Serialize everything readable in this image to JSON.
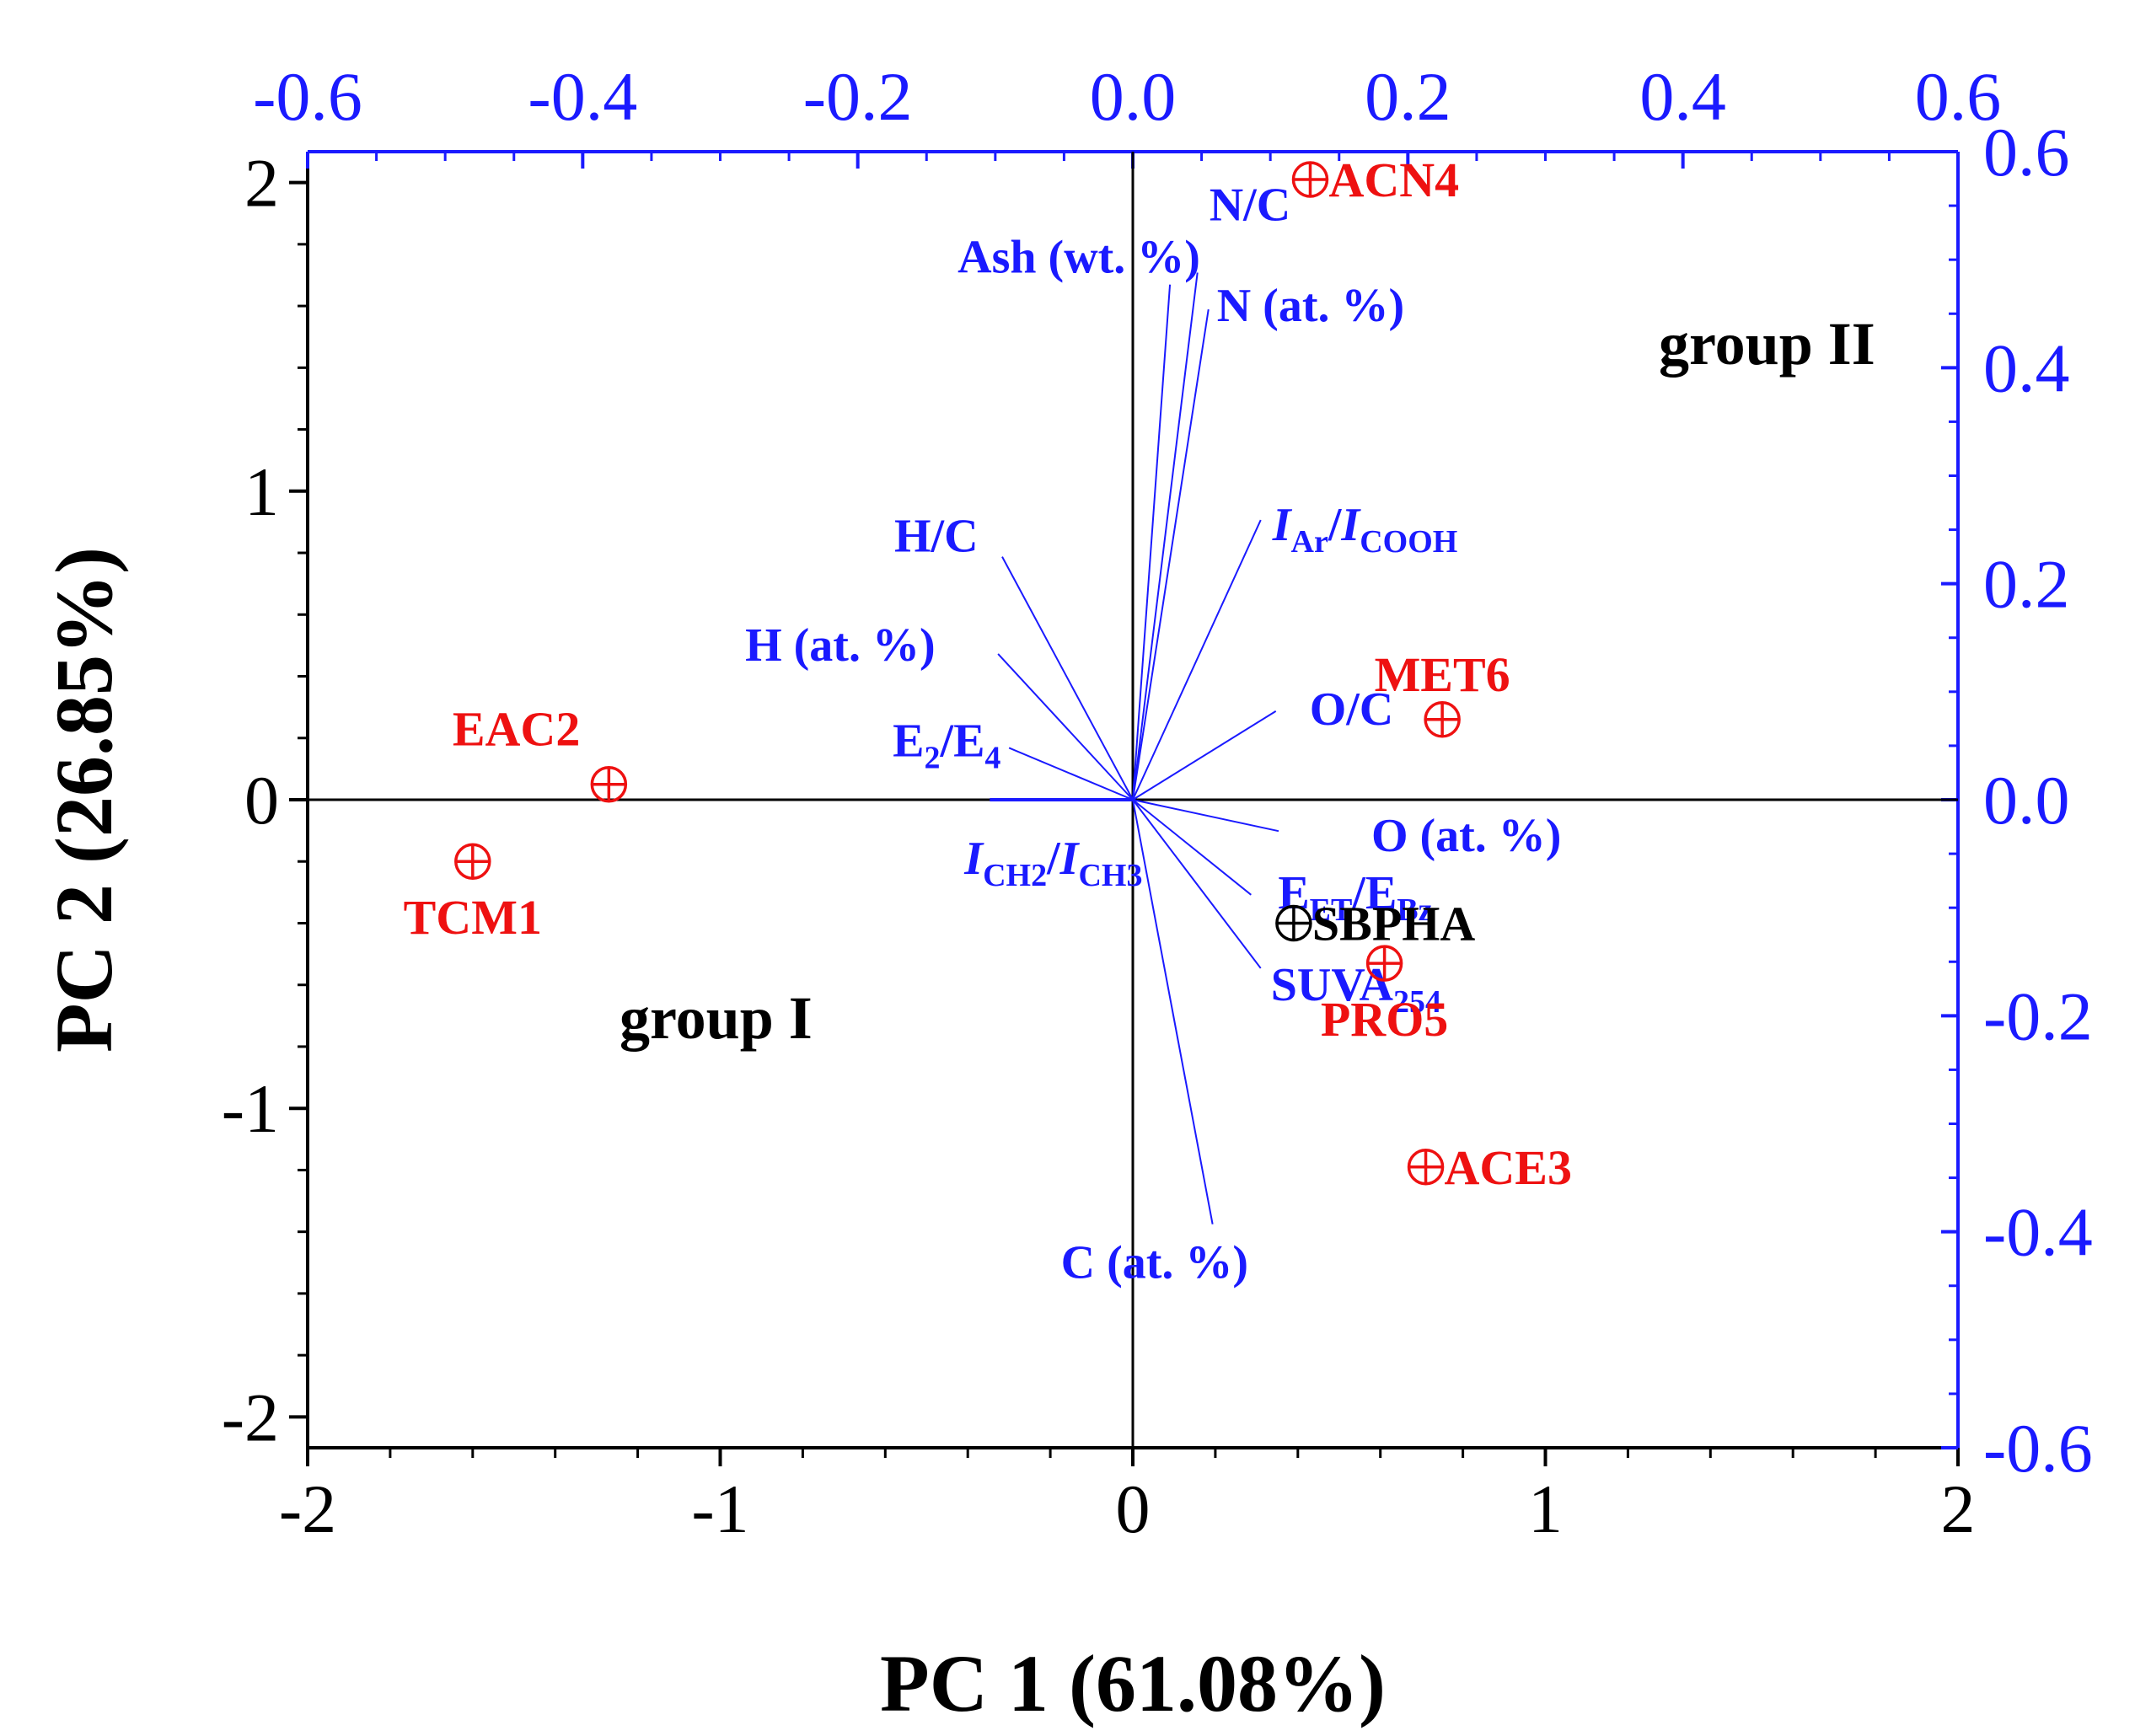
{
  "chart_data": {
    "type": "biplot",
    "x_title": "PC 1 (61.08%)",
    "y_title": "PC 2 (26.85%)",
    "score_axes": {
      "xlim": [
        -2,
        2
      ],
      "ylim": [
        -2.1,
        2.1
      ],
      "x_ticks": [
        "-2",
        "-1",
        "0",
        "1",
        "2"
      ],
      "y_ticks": [
        "-2",
        "-1",
        "0",
        "1",
        "2"
      ]
    },
    "loading_axes": {
      "xlim": [
        -0.6,
        0.6
      ],
      "ylim": [
        -0.6,
        0.6
      ],
      "x_ticks": [
        "-0.6",
        "-0.4",
        "-0.2",
        "0.0",
        "0.2",
        "0.4",
        "0.6"
      ],
      "y_ticks": [
        "-0.6",
        "-0.4",
        "-0.2",
        "0.0",
        "0.2",
        "0.4",
        "0.6"
      ]
    },
    "scores": [
      {
        "name": "TCM1",
        "x": -1.6,
        "y": -0.2,
        "color": "#ee1111",
        "label_pos": "below"
      },
      {
        "name": "EAC2",
        "x": -1.27,
        "y": 0.05,
        "color": "#ee1111",
        "label_pos": "upper-left"
      },
      {
        "name": "ACE3",
        "x": 0.71,
        "y": -1.19,
        "color": "#ee1111",
        "label_pos": "right"
      },
      {
        "name": "ACN4",
        "x": 0.43,
        "y": 2.01,
        "color": "#ee1111",
        "label_pos": "right"
      },
      {
        "name": "PRO5",
        "x": 0.61,
        "y": -0.53,
        "color": "#ee1111",
        "label_pos": "below"
      },
      {
        "name": "MET6",
        "x": 0.75,
        "y": 0.26,
        "color": "#ee1111",
        "label_pos": "above"
      },
      {
        "name": "SBPHA",
        "x": 0.39,
        "y": -0.4,
        "color": "#000000",
        "label_pos": "right"
      }
    ],
    "loadings": [
      {
        "id": "ash",
        "x": 0.027,
        "y": 0.477,
        "label": "Ash (wt. %)"
      },
      {
        "id": "nc",
        "x": 0.047,
        "y": 0.488,
        "label": "N/C"
      },
      {
        "id": "n",
        "x": 0.055,
        "y": 0.454,
        "label": "N (at. %)"
      },
      {
        "id": "iar",
        "x": 0.093,
        "y": 0.259,
        "label": "IAr/ICOOH"
      },
      {
        "id": "oc",
        "x": 0.104,
        "y": 0.082,
        "label": "O/C"
      },
      {
        "id": "o",
        "x": 0.106,
        "y": -0.029,
        "label": "O (at. %)"
      },
      {
        "id": "eet",
        "x": 0.086,
        "y": -0.088,
        "label": "EET/EBz"
      },
      {
        "id": "suva",
        "x": 0.093,
        "y": -0.156,
        "label": "SUVA254"
      },
      {
        "id": "c",
        "x": 0.058,
        "y": -0.393,
        "label": "C (at. %)"
      },
      {
        "id": "hc",
        "x": -0.095,
        "y": 0.225,
        "label": "H/C"
      },
      {
        "id": "h",
        "x": -0.098,
        "y": 0.135,
        "label": "H (at. %)"
      },
      {
        "id": "e2e4",
        "x": -0.09,
        "y": 0.048,
        "label": "E2/E4"
      },
      {
        "id": "ich2",
        "x": -0.104,
        "y": 0.0,
        "label": "ICH2/ICH3"
      }
    ],
    "loading_label_parts": {
      "ash": {
        "text": "Ash (wt. %)"
      },
      "nc": {
        "text": "N/C"
      },
      "n": {
        "text": "N (at. %)"
      },
      "iar": {
        "a": "I",
        "a_sub": "Ar",
        "sep": "/",
        "b": "I",
        "b_sub": "COOH"
      },
      "oc": {
        "text": "O/C"
      },
      "o": {
        "text": "O (at. %)"
      },
      "eet": {
        "a": "E",
        "a_sub": "ET",
        "sep": "/",
        "b": "E",
        "b_sub": "Bz"
      },
      "suva": {
        "a": "SUVA",
        "a_sub": "254"
      },
      "c": {
        "text": "C (at. %)"
      },
      "hc": {
        "text": "H/C"
      },
      "h": {
        "text": "H (at. %)"
      },
      "e2e4": {
        "a": "E",
        "a_sub": "2",
        "sep": "/",
        "b": "E",
        "b_sub": "4"
      },
      "ich2": {
        "a": "I",
        "a_sub": "CH2",
        "sep": "/",
        "b": "I",
        "b_sub": "CH3"
      }
    },
    "annotations": {
      "group1": "group I",
      "group2": "group II"
    },
    "colors": {
      "loading": "#1a1aff",
      "axis_secondary": "#1a1aff",
      "score": "#ee1111",
      "reference": "#000000"
    }
  }
}
